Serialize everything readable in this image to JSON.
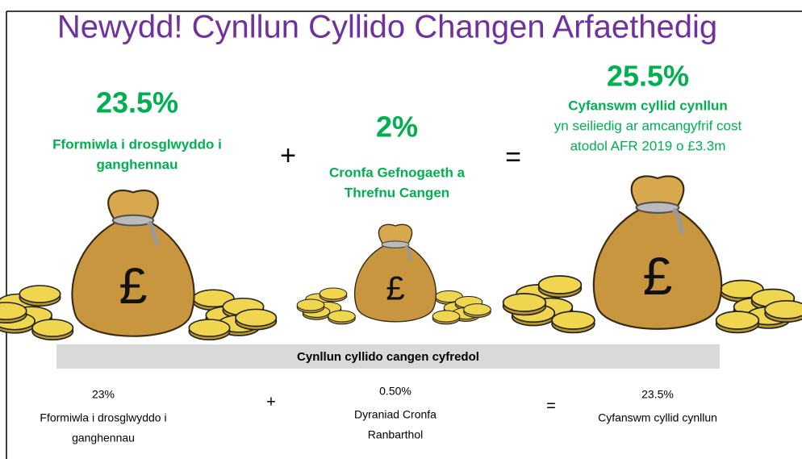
{
  "title": "Newydd! Cynllun Cyllido Changen Arfaethedig",
  "proposed": [
    {
      "value": "23.5%",
      "label_lines": [
        "Fformiwla i drosglwyddo i",
        "ganghennau"
      ]
    },
    {
      "value": "2%",
      "label_lines": [
        "Cronfa Gefnogaeth a",
        "Threfnu Cangen"
      ]
    },
    {
      "value": "25.5%",
      "label_lines": [
        "Cyfanswm cyllid cynllun"
      ],
      "note_lines": [
        "yn seiliedig ar amcangyfrif cost",
        "atodol AFR 2019 o £3.3m"
      ]
    }
  ],
  "operators": [
    "+",
    "="
  ],
  "bag_symbol": "£",
  "current": {
    "heading": "Cynllun cyllido cangen cyfredol",
    "items": [
      {
        "value": "23%",
        "label_lines": [
          "Fformiwla i drosglwyddo i",
          "ganghennau"
        ]
      },
      {
        "value": "0.50%",
        "label_lines": [
          "Dyraniad Cronfa",
          "Ranbarthol"
        ]
      },
      {
        "value": "23.5%",
        "label_lines": [
          "Cyfanswm cyllid cynllun"
        ]
      }
    ],
    "operators": [
      "+",
      "="
    ]
  }
}
